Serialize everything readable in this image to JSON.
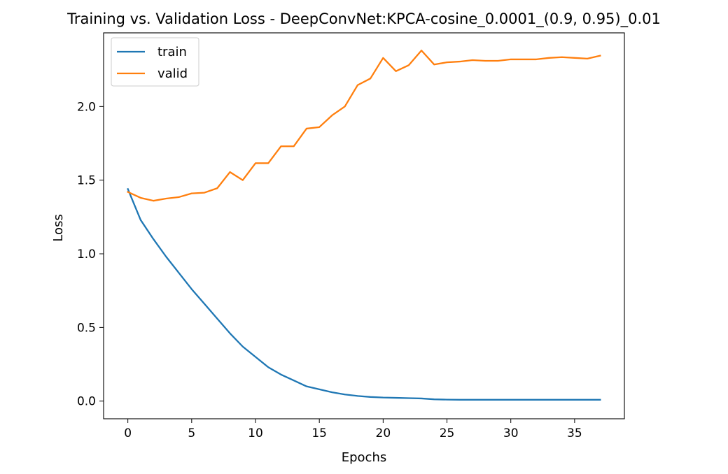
{
  "chart_data": {
    "type": "line",
    "title": "Training vs. Validation Loss - DeepConvNet:KPCA-cosine_0.0001_(0.9, 0.95)_0.01",
    "xlabel": "Epochs",
    "ylabel": "Loss",
    "xlim": [
      -1.9,
      38.9
    ],
    "ylim": [
      -0.12,
      2.5
    ],
    "xticks": [
      0,
      5,
      10,
      15,
      20,
      25,
      30,
      35
    ],
    "yticks": [
      0.0,
      0.5,
      1.0,
      1.5,
      2.0
    ],
    "ytick_labels": [
      "0.0",
      "0.5",
      "1.0",
      "1.5",
      "2.0"
    ],
    "grid": false,
    "legend_position": "top-left",
    "x": [
      0,
      1,
      2,
      3,
      4,
      5,
      6,
      7,
      8,
      9,
      10,
      11,
      12,
      13,
      14,
      15,
      16,
      17,
      18,
      19,
      20,
      21,
      22,
      23,
      24,
      25,
      26,
      27,
      28,
      29,
      30,
      31,
      32,
      33,
      34,
      35,
      36,
      37
    ],
    "series": [
      {
        "name": "train",
        "color": "#1f77b4",
        "values": [
          1.44,
          1.23,
          1.1,
          0.98,
          0.87,
          0.76,
          0.66,
          0.56,
          0.46,
          0.37,
          0.3,
          0.23,
          0.18,
          0.14,
          0.1,
          0.08,
          0.06,
          0.045,
          0.035,
          0.028,
          0.024,
          0.022,
          0.02,
          0.018,
          0.012,
          0.01,
          0.009,
          0.009,
          0.009,
          0.009,
          0.009,
          0.009,
          0.009,
          0.009,
          0.009,
          0.009,
          0.009,
          0.009
        ]
      },
      {
        "name": "valid",
        "color": "#ff7f0e",
        "values": [
          1.42,
          1.38,
          1.36,
          1.375,
          1.385,
          1.41,
          1.415,
          1.445,
          1.555,
          1.5,
          1.615,
          1.615,
          1.73,
          1.73,
          1.85,
          1.86,
          1.94,
          2.0,
          2.145,
          2.19,
          2.33,
          2.24,
          2.28,
          2.38,
          2.285,
          2.3,
          2.305,
          2.315,
          2.31,
          2.31,
          2.32,
          2.32,
          2.32,
          2.33,
          2.335,
          2.33,
          2.325,
          2.345
        ]
      }
    ]
  }
}
